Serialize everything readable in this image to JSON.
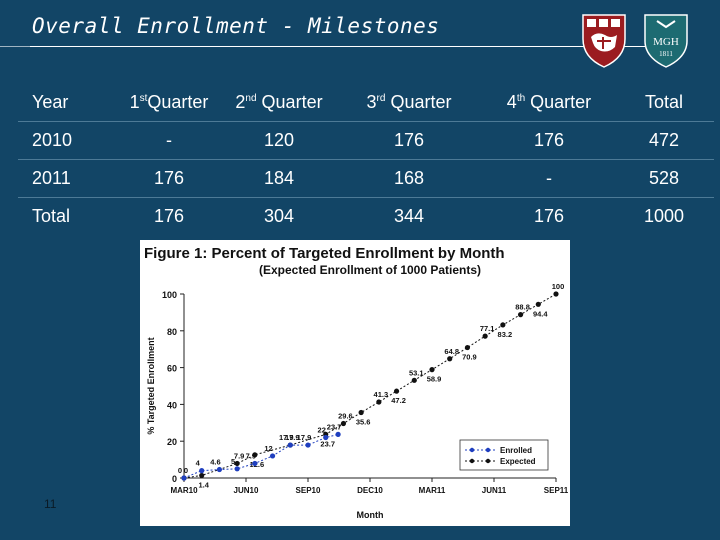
{
  "slide": {
    "title": "Overall Enrollment - Milestones",
    "page_number": "11"
  },
  "table": {
    "headers": [
      {
        "main": "Year",
        "sup": "",
        "rest": ""
      },
      {
        "main": "1",
        "sup": "st",
        "rest": "Quarter"
      },
      {
        "main": "2",
        "sup": "nd",
        "rest": " Quarter"
      },
      {
        "main": "3",
        "sup": "rd",
        "rest": " Quarter"
      },
      {
        "main": "4",
        "sup": "th",
        "rest": " Quarter"
      },
      {
        "main": "Total",
        "sup": "",
        "rest": ""
      }
    ],
    "rows": [
      [
        "2010",
        "-",
        "120",
        "176",
        "176",
        "472"
      ],
      [
        "2011",
        "176",
        "184",
        "168",
        "-",
        "528"
      ],
      [
        "Total",
        "176",
        "304",
        "344",
        "176",
        "1000"
      ]
    ]
  },
  "logos": {
    "mgh_text": "MGH",
    "mgh_year": "1811"
  },
  "colors": {
    "background": "#124566",
    "enrolled": "#1f3fbf",
    "expected": "#111111"
  },
  "chart_data": {
    "type": "line",
    "title": "Figure 1: Percent of Targeted Enrollment by Month",
    "subtitle": "(Expected Enrollment of 1000 Patients)",
    "xlabel": "Month",
    "ylabel": "% Targeted Enrollment",
    "x_ticks": [
      "MAR10",
      "JUN10",
      "SEP10",
      "DEC10",
      "MAR11",
      "JUN11",
      "SEP11"
    ],
    "ylim": [
      0,
      100
    ],
    "y_ticks": [
      0,
      20,
      40,
      60,
      80,
      100
    ],
    "legend_position": "bottom-right",
    "series": [
      {
        "name": "Enrolled",
        "style": "dotted",
        "points": [
          {
            "x": 0,
            "y": 0,
            "label": "0"
          },
          {
            "x": 1,
            "y": 4,
            "label": "4"
          },
          {
            "x": 2,
            "y": 4.6,
            "label": "4.6"
          },
          {
            "x": 3,
            "y": 5,
            "label": "5"
          },
          {
            "x": 4,
            "y": 7.9,
            "label": "7.9"
          },
          {
            "x": 5,
            "y": 12,
            "label": "12"
          },
          {
            "x": 6,
            "y": 17.9,
            "label": "17.9"
          },
          {
            "x": 7,
            "y": 17.9,
            "label": "17.9"
          },
          {
            "x": 8,
            "y": 22,
            "label": "22"
          },
          {
            "x": 8.7,
            "y": 23.7,
            "label": "23.7"
          }
        ]
      },
      {
        "name": "Expected",
        "style": "dotted",
        "points": [
          {
            "x": 0,
            "y": 0,
            "label": "0"
          },
          {
            "x": 1,
            "y": 1.4,
            "label": "1.4"
          },
          {
            "x": 3,
            "y": 7.9,
            "label": "7.9"
          },
          {
            "x": 4,
            "y": 12.6,
            "label": "12.6"
          },
          {
            "x": 6,
            "y": 17.9,
            "label": "17.9"
          },
          {
            "x": 8,
            "y": 23.7,
            "label": "23.7"
          },
          {
            "x": 9,
            "y": 29.6,
            "label": "29.6"
          },
          {
            "x": 10,
            "y": 35.6,
            "label": "35.6"
          },
          {
            "x": 11,
            "y": 41.3,
            "label": "41.3"
          },
          {
            "x": 12,
            "y": 47.2,
            "label": "47.2"
          },
          {
            "x": 13,
            "y": 53.1,
            "label": "53.1"
          },
          {
            "x": 14,
            "y": 58.9,
            "label": "58.9"
          },
          {
            "x": 15,
            "y": 64.8,
            "label": "64.8"
          },
          {
            "x": 16,
            "y": 70.9,
            "label": "70.9"
          },
          {
            "x": 17,
            "y": 77.1,
            "label": "77.1"
          },
          {
            "x": 18,
            "y": 83.2,
            "label": "83.2"
          },
          {
            "x": 19,
            "y": 88.8,
            "label": "88.8"
          },
          {
            "x": 20,
            "y": 94.4,
            "label": "94.4"
          },
          {
            "x": 21,
            "y": 100,
            "label": "100"
          }
        ]
      }
    ]
  }
}
